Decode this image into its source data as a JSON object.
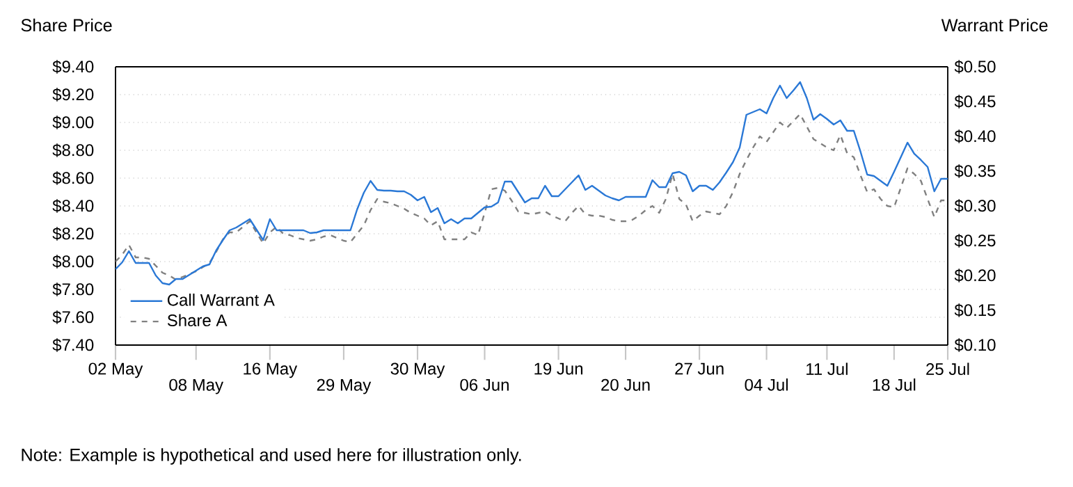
{
  "chart_data": {
    "type": "line",
    "ylabel": "Share Price",
    "y2label": "Warrant Price",
    "annotations": [
      "Note: Example is hypothetical and used here for illustration only."
    ],
    "categories": [
      "02 May",
      null,
      null,
      null,
      null,
      null,
      null,
      null,
      null,
      null,
      null,
      null,
      "08 May",
      null,
      null,
      null,
      null,
      null,
      null,
      null,
      null,
      null,
      null,
      "16 May",
      null,
      null,
      null,
      null,
      null,
      null,
      null,
      null,
      null,
      null,
      "29 May",
      null,
      null,
      null,
      null,
      null,
      null,
      null,
      null,
      null,
      null,
      "30 May",
      null,
      null,
      null,
      null,
      null,
      null,
      null,
      null,
      null,
      "06 Jun",
      null,
      null,
      null,
      null,
      null,
      null,
      null,
      null,
      null,
      null,
      "19 Jun",
      null,
      null,
      null,
      null,
      null,
      null,
      null,
      null,
      null,
      "20 Jun",
      null,
      null,
      null,
      null,
      null,
      null,
      null,
      null,
      null,
      null,
      "27 Jun",
      null,
      null,
      null,
      null,
      null,
      null,
      null,
      null,
      null,
      "04 Jul",
      null,
      null,
      null,
      null,
      null,
      null,
      null,
      null,
      "11 Jul",
      null,
      null,
      null,
      null,
      null,
      null,
      null,
      null,
      null,
      "18 Jul",
      null,
      null,
      null,
      null,
      null,
      null,
      null,
      "25 Jul"
    ],
    "ylim": [
      7.4,
      9.4
    ],
    "yticks": [
      {
        "value": 7.4,
        "label": "$7.40"
      },
      {
        "value": 7.6,
        "label": "$7.60"
      },
      {
        "value": 7.8,
        "label": "$7.80"
      },
      {
        "value": 8.0,
        "label": "$8.00"
      },
      {
        "value": 8.2,
        "label": "$8.20"
      },
      {
        "value": 8.4,
        "label": "$8.40"
      },
      {
        "value": 8.6,
        "label": "$8.60"
      },
      {
        "value": 8.8,
        "label": "$8.80"
      },
      {
        "value": 9.0,
        "label": "$9.00"
      },
      {
        "value": 9.2,
        "label": "$9.20"
      },
      {
        "value": 9.4,
        "label": "$9.40"
      }
    ],
    "y2lim": [
      0.1,
      0.5
    ],
    "y2ticks": [
      {
        "value": 0.1,
        "label": "$0.10"
      },
      {
        "value": 0.15,
        "label": "$0.15"
      },
      {
        "value": 0.2,
        "label": "$0.20"
      },
      {
        "value": 0.25,
        "label": "$0.25"
      },
      {
        "value": 0.3,
        "label": "$0.30"
      },
      {
        "value": 0.35,
        "label": "$0.35"
      },
      {
        "value": 0.4,
        "label": "$0.40"
      },
      {
        "value": 0.45,
        "label": "$0.45"
      },
      {
        "value": 0.5,
        "label": "$0.50"
      }
    ],
    "grid": "y",
    "legend": "bottom left",
    "series": [
      {
        "name": "Call Warrant A",
        "color": "#2a78d6",
        "axis": "y2",
        "line_style": "solid",
        "values": [
          0.209,
          0.219,
          0.235,
          0.218,
          0.218,
          0.218,
          0.2,
          0.189,
          0.187,
          0.195,
          0.195,
          0.201,
          0.207,
          0.213,
          0.216,
          0.236,
          0.251,
          0.265,
          0.269,
          0.275,
          0.281,
          0.266,
          0.251,
          0.281,
          0.265,
          0.265,
          0.265,
          0.265,
          0.265,
          0.261,
          0.262,
          0.265,
          0.265,
          0.265,
          0.265,
          0.265,
          0.295,
          0.319,
          0.336,
          0.323,
          0.322,
          0.322,
          0.321,
          0.321,
          0.316,
          0.308,
          0.313,
          0.291,
          0.297,
          0.275,
          0.281,
          0.275,
          0.282,
          0.282,
          0.29,
          0.298,
          0.299,
          0.305,
          0.335,
          0.335,
          0.32,
          0.305,
          0.311,
          0.311,
          0.329,
          0.314,
          0.314,
          0.324,
          0.334,
          0.344,
          0.323,
          0.329,
          0.322,
          0.315,
          0.311,
          0.308,
          0.313,
          0.313,
          0.313,
          0.313,
          0.337,
          0.327,
          0.327,
          0.347,
          0.349,
          0.344,
          0.321,
          0.329,
          0.329,
          0.323,
          0.334,
          0.348,
          0.363,
          0.384,
          0.431,
          0.435,
          0.439,
          0.433,
          0.455,
          0.473,
          0.455,
          0.466,
          0.478,
          0.455,
          0.424,
          0.432,
          0.425,
          0.417,
          0.423,
          0.408,
          0.408,
          0.378,
          0.345,
          0.343,
          0.336,
          0.329,
          0.349,
          0.37,
          0.391,
          0.375,
          0.366,
          0.356,
          0.321,
          0.339,
          0.339
        ]
      },
      {
        "name": "Share A",
        "color": "#808080",
        "axis": "y",
        "line_style": "dashed",
        "values": [
          8.0,
          8.05,
          8.12,
          8.03,
          8.03,
          8.02,
          7.97,
          7.92,
          7.9,
          7.87,
          7.89,
          7.91,
          7.93,
          7.96,
          7.99,
          8.07,
          8.16,
          8.21,
          8.21,
          8.25,
          8.29,
          8.21,
          8.13,
          8.21,
          8.25,
          8.2,
          8.19,
          8.17,
          8.16,
          8.15,
          8.16,
          8.18,
          8.19,
          8.17,
          8.15,
          8.14,
          8.2,
          8.26,
          8.37,
          8.45,
          8.43,
          8.42,
          8.4,
          8.38,
          8.35,
          8.33,
          8.31,
          8.26,
          8.29,
          8.16,
          8.16,
          8.16,
          8.16,
          8.21,
          8.19,
          8.35,
          8.52,
          8.53,
          8.51,
          8.44,
          8.36,
          8.35,
          8.34,
          8.35,
          8.36,
          8.33,
          8.31,
          8.29,
          8.35,
          8.4,
          8.34,
          8.33,
          8.33,
          8.32,
          8.3,
          8.29,
          8.29,
          8.3,
          8.33,
          8.37,
          8.4,
          8.35,
          8.45,
          8.63,
          8.45,
          8.41,
          8.29,
          8.33,
          8.36,
          8.35,
          8.34,
          8.4,
          8.5,
          8.63,
          8.73,
          8.82,
          8.9,
          8.86,
          8.93,
          9.0,
          8.96,
          9.01,
          9.06,
          8.97,
          8.88,
          8.85,
          8.82,
          8.8,
          8.91,
          8.78,
          8.75,
          8.62,
          8.5,
          8.52,
          8.45,
          8.4,
          8.39,
          8.53,
          8.67,
          8.63,
          8.58,
          8.45,
          8.32,
          8.44,
          8.44
        ]
      }
    ]
  }
}
